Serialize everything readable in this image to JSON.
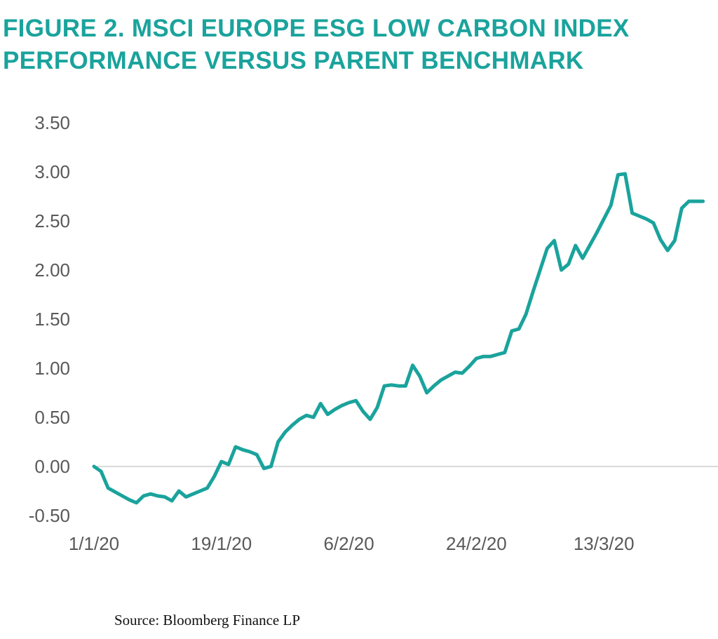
{
  "figure": {
    "title_line1": "FIGURE 2. MSCI EUROPE ESG LOW CARBON INDEX",
    "title_line2": "PERFORMANCE VERSUS PARENT BENCHMARK",
    "source": "Source: Bloomberg Finance LP"
  },
  "colors": {
    "title": "#1aa39c",
    "series": "#1aa39c",
    "axis_text": "#595959",
    "zero_line": "#d9d9d9"
  },
  "chart_data": {
    "type": "line",
    "title": "FIGURE 2. MSCI EUROPE ESG LOW CARBON INDEX PERFORMANCE VERSUS PARENT BENCHMARK",
    "xlabel": "",
    "ylabel": "",
    "ylim": [
      -0.5,
      3.5
    ],
    "yticks": [
      "3.50",
      "3.00",
      "2.50",
      "2.00",
      "1.50",
      "1.00",
      "0.50",
      "0.00",
      "-0.50"
    ],
    "ytick_values": [
      3.5,
      3.0,
      2.5,
      2.0,
      1.5,
      1.0,
      0.5,
      0.0,
      -0.5
    ],
    "xticks": [
      "1/1/20",
      "19/1/20",
      "6/2/20",
      "24/2/20",
      "13/3/20"
    ],
    "xtick_days": [
      0,
      18,
      36,
      54,
      72
    ],
    "grid": false,
    "legend": "none",
    "x_units": "days since 1/1/20",
    "series": [
      {
        "x": [
          0,
          1,
          2,
          3,
          4,
          5,
          6,
          7,
          8,
          9,
          10,
          11,
          12,
          13,
          14,
          15,
          16,
          17,
          18,
          19,
          20,
          21,
          22,
          23,
          24,
          25,
          26,
          27,
          28,
          29,
          30,
          31,
          32,
          33,
          34,
          35,
          36,
          37,
          38,
          39,
          40,
          41,
          42,
          43,
          44,
          45,
          46,
          47,
          48,
          49,
          50,
          51,
          52,
          53,
          54,
          55,
          56,
          57,
          58,
          59,
          60,
          61,
          62,
          63,
          64,
          65,
          66,
          67,
          68,
          69,
          70,
          71,
          72,
          73,
          74,
          75,
          76,
          77,
          78,
          79,
          80,
          81,
          82,
          83,
          84,
          85,
          86
        ],
        "y": [
          0.0,
          -0.05,
          -0.22,
          -0.26,
          -0.3,
          -0.34,
          -0.37,
          -0.3,
          -0.28,
          -0.3,
          -0.31,
          -0.35,
          -0.25,
          -0.31,
          -0.28,
          -0.25,
          -0.22,
          -0.1,
          0.05,
          0.02,
          0.2,
          0.17,
          0.15,
          0.12,
          -0.02,
          0.0,
          0.25,
          0.35,
          0.42,
          0.48,
          0.52,
          0.5,
          0.64,
          0.53,
          0.58,
          0.62,
          0.65,
          0.67,
          0.56,
          0.48,
          0.6,
          0.82,
          0.83,
          0.82,
          0.82,
          1.03,
          0.92,
          0.75,
          0.82,
          0.88,
          0.92,
          0.96,
          0.95,
          1.02,
          1.1,
          1.12,
          1.12,
          1.14,
          1.16,
          1.38,
          1.4,
          1.55,
          1.78,
          2.0,
          2.22,
          2.3,
          2.0,
          2.06,
          2.25,
          2.12,
          2.25,
          2.38,
          2.52,
          2.66,
          2.97,
          2.98,
          2.58,
          2.55,
          2.52,
          2.48,
          2.31,
          2.2,
          2.3,
          2.63,
          2.7,
          2.7,
          2.7
        ]
      }
    ]
  }
}
